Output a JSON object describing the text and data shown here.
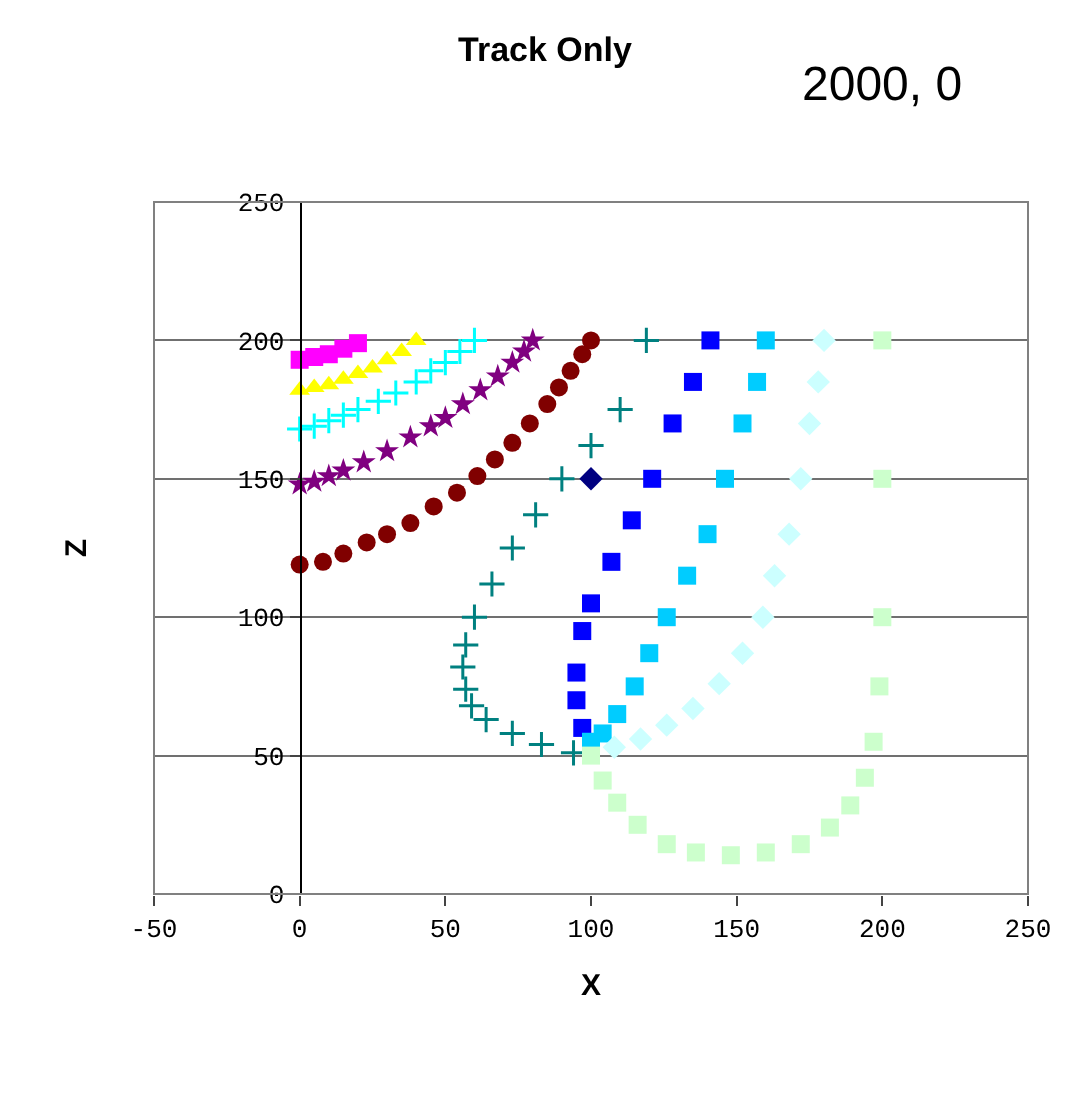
{
  "chart_data": {
    "type": "scatter",
    "title": "Track Only",
    "xlabel": "X",
    "ylabel": "Z",
    "annotations": [
      "2000, 0"
    ],
    "xlim": [
      -50,
      250
    ],
    "xticks": [
      -50,
      0,
      50,
      100,
      150,
      200,
      250
    ],
    "ylim": [
      0,
      250
    ],
    "yticks": [
      0,
      50,
      100,
      150,
      200,
      250
    ],
    "grid": "y",
    "series": [
      {
        "color": "#ff00ff",
        "marker": "square",
        "x": [
          0,
          5,
          10,
          15,
          20
        ],
        "values": [
          193,
          194,
          195,
          197,
          199
        ]
      },
      {
        "color": "#ffff00",
        "marker": "triangle",
        "x": [
          0,
          5,
          10,
          15,
          20,
          25,
          30,
          35,
          40
        ],
        "values": [
          182,
          183,
          184,
          186,
          188,
          190,
          193,
          196,
          200
        ]
      },
      {
        "color": "#00ffff",
        "marker": "cross",
        "x": [
          0,
          5,
          10,
          15,
          20,
          27,
          33,
          40,
          45,
          50,
          55,
          60
        ],
        "values": [
          168,
          169,
          171,
          173,
          175,
          178,
          181,
          185,
          189,
          192,
          196,
          200
        ]
      },
      {
        "color": "#800080",
        "marker": "star",
        "x": [
          0,
          5,
          10,
          15,
          22,
          30,
          38,
          45,
          50,
          56,
          62,
          68,
          73,
          77,
          80
        ],
        "values": [
          148,
          149,
          151,
          153,
          156,
          160,
          165,
          169,
          172,
          177,
          182,
          187,
          192,
          196,
          200
        ]
      },
      {
        "color": "#800000",
        "marker": "circle",
        "x": [
          0,
          8,
          15,
          23,
          30,
          38,
          46,
          54,
          61,
          67,
          73,
          79,
          85,
          89,
          93,
          97,
          100
        ],
        "values": [
          119,
          120,
          123,
          127,
          130,
          134,
          140,
          145,
          151,
          157,
          163,
          170,
          177,
          183,
          189,
          195,
          200
        ]
      },
      {
        "color": "#008080",
        "marker": "cross",
        "x": [
          119,
          110,
          100,
          90,
          81,
          73,
          66,
          60,
          57,
          56,
          57,
          59,
          64,
          73,
          83,
          94
        ],
        "values": [
          200,
          175,
          162,
          150,
          137,
          125,
          112,
          100,
          90,
          82,
          74,
          68,
          63,
          58,
          54,
          51
        ]
      },
      {
        "color": "#0000ff",
        "marker": "square",
        "x": [
          141,
          135,
          128,
          121,
          114,
          107,
          100,
          97,
          95,
          95,
          97
        ],
        "values": [
          200,
          185,
          170,
          150,
          135,
          120,
          105,
          95,
          80,
          70,
          60
        ]
      },
      {
        "color": "#00ccff",
        "marker": "square",
        "x": [
          160,
          157,
          152,
          146,
          140,
          133,
          126,
          120,
          115,
          109,
          104,
          100
        ],
        "values": [
          200,
          185,
          170,
          150,
          130,
          115,
          100,
          87,
          75,
          65,
          58,
          55
        ]
      },
      {
        "color": "#ccffff",
        "marker": "diamond",
        "x": [
          180,
          178,
          175,
          172,
          168,
          163,
          159,
          152,
          144,
          135,
          126,
          117,
          108
        ],
        "values": [
          200,
          185,
          170,
          150,
          130,
          115,
          100,
          87,
          76,
          67,
          61,
          56,
          53
        ]
      },
      {
        "color": "#ccffcc",
        "marker": "square",
        "x": [
          200,
          200,
          200,
          199,
          197,
          194,
          189,
          182,
          172,
          160,
          148,
          136,
          126,
          116,
          109,
          104,
          100
        ],
        "values": [
          200,
          150,
          100,
          75,
          55,
          42,
          32,
          24,
          18,
          15,
          14,
          15,
          18,
          25,
          33,
          41,
          50
        ]
      },
      {
        "color": "#000080",
        "marker": "diamond",
        "x": [
          100
        ],
        "values": [
          150
        ]
      }
    ]
  }
}
